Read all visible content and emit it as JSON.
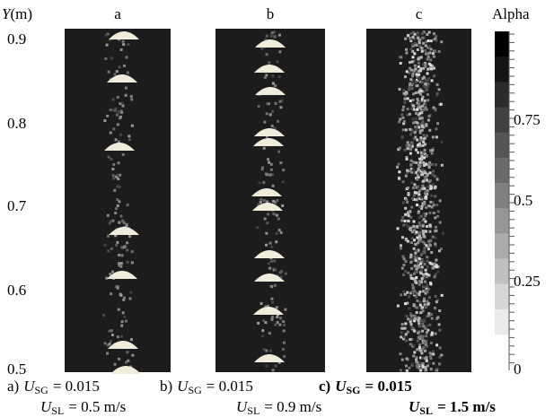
{
  "y_axis": {
    "label_symbol": "Y",
    "label_unit": "(m)",
    "ticks": [
      "0.9",
      "0.8",
      "0.7",
      "0.6",
      "0.5"
    ]
  },
  "panels": [
    {
      "label": "a",
      "prefix": "a)",
      "usg_symbol": "U",
      "usg_subscript": "SG",
      "usg_value": "= 0.015",
      "usl_symbol": "U",
      "usl_subscript": "SL",
      "usl_value": "= 0.5 m/s"
    },
    {
      "label": "b",
      "prefix": "b)",
      "usg_symbol": "U",
      "usg_subscript": "SG",
      "usg_value": "= 0.015",
      "usl_symbol": "U",
      "usl_subscript": "SL",
      "usl_value": "= 0.9 m/s"
    },
    {
      "label": "c",
      "prefix": "c)",
      "usg_symbol": "U",
      "usg_subscript": "SG",
      "usg_value": "= 0.015",
      "usl_symbol": "U",
      "usl_subscript": "SL",
      "usl_value": "= 1.5 m/s"
    }
  ],
  "colorbar": {
    "title": "Alpha",
    "ticks": [
      "0",
      "0.25",
      "0.5",
      "0.75"
    ]
  }
}
